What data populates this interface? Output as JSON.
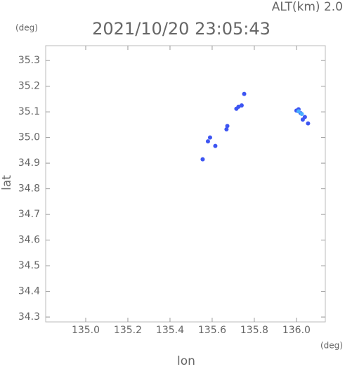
{
  "chart_data": {
    "type": "scatter",
    "title": "2021/10/20 23:05:43",
    "subtitle": "ALT(km) 2.0",
    "x_label": "lon",
    "y_label": "lat",
    "x_unit": "(deg)",
    "y_unit": "(deg)",
    "xlim": [
      134.81,
      136.137
    ],
    "ylim": [
      34.281,
      35.358
    ],
    "xticks": [
      {
        "value": 135.0,
        "label": "135.0"
      },
      {
        "value": 135.2,
        "label": "135.2"
      },
      {
        "value": 135.4,
        "label": "135.4"
      },
      {
        "value": 135.6,
        "label": "135.6"
      },
      {
        "value": 135.8,
        "label": "135.8"
      },
      {
        "value": 136.0,
        "label": "136.0"
      }
    ],
    "yticks": [
      {
        "value": 34.3,
        "label": "34.3"
      },
      {
        "value": 34.4,
        "label": "34.4"
      },
      {
        "value": 34.5,
        "label": "34.5"
      },
      {
        "value": 34.6,
        "label": "34.6"
      },
      {
        "value": 34.7,
        "label": "34.7"
      },
      {
        "value": 34.8,
        "label": "34.8"
      },
      {
        "value": 34.9,
        "label": "34.9"
      },
      {
        "value": 35.0,
        "label": "35.0"
      },
      {
        "value": 35.1,
        "label": "35.1"
      },
      {
        "value": 35.2,
        "label": "35.2"
      },
      {
        "value": 35.3,
        "label": "35.3"
      }
    ],
    "series": [
      {
        "color": "#3d55f2",
        "x": [
          135.752,
          135.725,
          135.74,
          135.715,
          135.672,
          135.668,
          135.59,
          135.58,
          135.615,
          135.555,
          136.0,
          136.02,
          136.04,
          136.055,
          136.01,
          136.03
        ],
        "values": [
          35.17,
          35.12,
          35.125,
          35.112,
          35.045,
          35.032,
          35.0,
          34.985,
          34.967,
          34.915,
          35.105,
          35.095,
          35.08,
          35.055,
          35.11,
          35.07
        ]
      },
      {
        "color": "#4ab0ff",
        "x": [
          136.025,
          136.01
        ],
        "values": [
          35.092,
          35.102
        ]
      }
    ]
  }
}
